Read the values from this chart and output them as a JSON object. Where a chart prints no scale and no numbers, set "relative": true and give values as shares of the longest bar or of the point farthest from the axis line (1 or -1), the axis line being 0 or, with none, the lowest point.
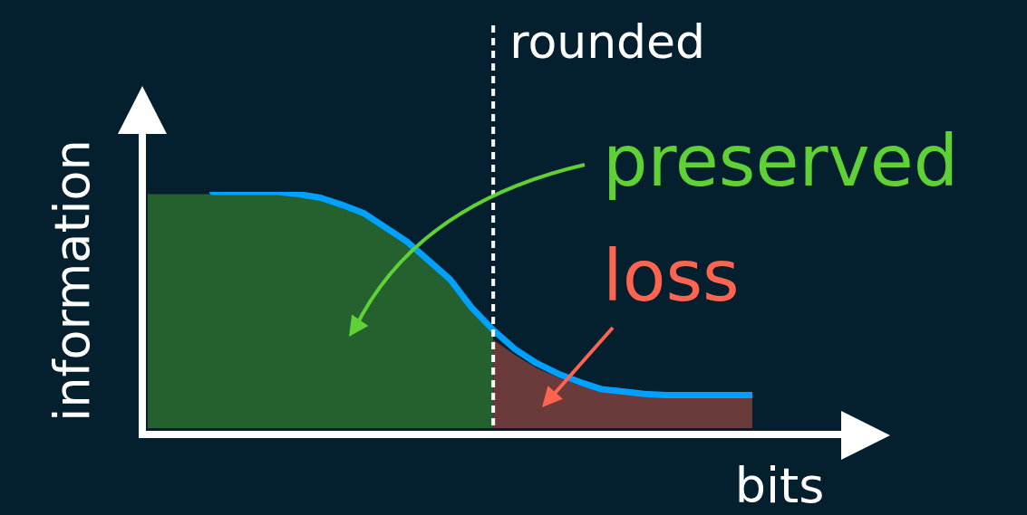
{
  "chart_data": {
    "type": "area",
    "relative": true,
    "xlabel": "bits",
    "ylabel": "information",
    "categories": [
      null,
      null,
      null,
      null,
      null,
      null,
      null,
      null,
      null,
      null,
      null,
      null,
      null,
      null,
      null,
      null,
      null,
      null,
      null,
      null,
      null,
      null,
      null,
      null,
      null,
      null,
      null,
      null,
      null
    ],
    "series": [
      {
        "color": "#25602f",
        "values": [
          0.99,
          0.99,
          0.99,
          0.99,
          0.99,
          0.99,
          0.99,
          0.99,
          0.975,
          0.945,
          0.91,
          0.85,
          0.79,
          0.71,
          0.63,
          0.51,
          0.415,
          null,
          null,
          null,
          null,
          null,
          null,
          null,
          null,
          null,
          null,
          null,
          null
        ]
      },
      {
        "color": "#6b3a3a",
        "values": [
          null,
          null,
          null,
          null,
          null,
          null,
          null,
          null,
          null,
          null,
          null,
          null,
          null,
          null,
          null,
          null,
          0.375,
          0.31,
          0.255,
          0.215,
          0.18,
          0.155,
          0.145,
          0.135,
          0.13,
          0.13,
          0.13,
          0.13,
          0.13
        ]
      },
      {
        "type": "line",
        "color": "#00a0ff",
        "values": [
          null,
          null,
          null,
          1.0,
          1.0,
          1.0,
          1.0,
          0.99,
          0.975,
          0.945,
          0.91,
          0.85,
          0.79,
          0.71,
          0.63,
          0.51,
          0.415,
          0.335,
          0.275,
          0.23,
          0.195,
          0.165,
          0.155,
          0.145,
          0.14,
          0.14,
          0.14,
          0.14,
          0.14
        ]
      }
    ],
    "ref_lines": [
      {
        "axis": "x",
        "label": "rounded",
        "color": "#ffffff",
        "line_style": "dotted"
      }
    ],
    "annotations": [
      "preserved",
      "loss"
    ]
  }
}
